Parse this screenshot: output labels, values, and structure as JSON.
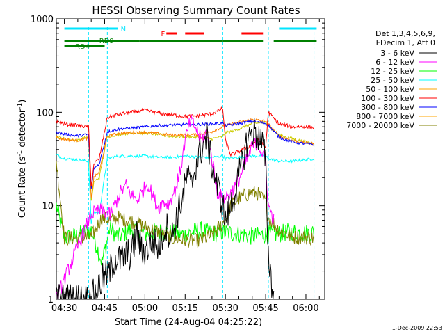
{
  "chart_data": {
    "type": "line",
    "title": "HESSI Observing Summary Count Rates",
    "xlabel": "Start Time (24-Aug-04 04:25:22)",
    "ylabel": "Count Rate (s⁻¹ detector⁻¹)",
    "ylabel_parts": {
      "main": "Count Rate (s",
      "sup1": "-1",
      "mid": " detector",
      "sup2": "-1",
      "end": ")"
    },
    "y_scale": "log",
    "ylim": [
      1,
      1000
    ],
    "xlim_minutes": [
      -3,
      97
    ],
    "x_tick_labels": [
      "04:30",
      "04:45",
      "05:00",
      "05:15",
      "05:30",
      "05:45",
      "06:00"
    ],
    "x_tick_minutes": [
      0,
      15,
      30,
      45,
      60,
      75,
      90
    ],
    "y_tick_labels": [
      "1",
      "10",
      "100",
      "1000"
    ],
    "y_tick_values": [
      1,
      10,
      100,
      1000
    ],
    "grid": false,
    "legend_position": "right",
    "legend_header": [
      "Det 1,3,4,5,6,9,",
      "FDecim 1, Att 0"
    ],
    "timestamp": "1-Dec-2009 22:53",
    "flags": [
      {
        "label": "N",
        "color": "#00e5ff",
        "segments": [
          [
            0,
            20
          ],
          [
            80,
            94
          ]
        ]
      },
      {
        "label": "F",
        "color": "#ff0000",
        "segments": [
          [
            38,
            42
          ],
          [
            45,
            52
          ],
          [
            66,
            74
          ]
        ]
      },
      {
        "label": "RD9",
        "color": "#008000",
        "segments": [
          [
            0,
            28
          ],
          [
            28,
            59
          ],
          [
            59,
            74
          ],
          [
            78,
            94
          ]
        ]
      },
      {
        "label": "RD4",
        "color": "#008000",
        "segments": [
          [
            0,
            15
          ]
        ]
      }
    ],
    "saa_times": [
      9,
      16,
      59,
      76,
      93
    ],
    "series": [
      {
        "name": "3 - 6 keV",
        "color": "#000000",
        "x": [
          -3,
          10,
          14,
          17,
          19,
          21,
          23,
          25,
          27,
          29,
          31,
          33,
          35,
          37,
          38,
          40,
          42,
          44,
          46,
          47,
          49,
          51,
          53,
          55,
          57,
          59,
          60,
          62,
          64,
          66,
          68,
          70,
          72,
          74,
          75,
          76,
          78
        ],
        "y": [
          1.0,
          1.0,
          1.6,
          2.0,
          2.8,
          2.6,
          3.0,
          3.0,
          5.0,
          3.2,
          3.5,
          4.2,
          3.5,
          5.2,
          6.0,
          4.5,
          8,
          12,
          22,
          15,
          28,
          40,
          55,
          28,
          16,
          10,
          7,
          10,
          15,
          27,
          48,
          63,
          58,
          44,
          28,
          3.0,
          1.0
        ]
      },
      {
        "name": "6 - 12 keV",
        "color": "#ff00ff",
        "x": [
          -3,
          10,
          14,
          17,
          19,
          21,
          23,
          25,
          27,
          29,
          31,
          33,
          35,
          37,
          39,
          41,
          43,
          45,
          47,
          49,
          51,
          53,
          55,
          57,
          59,
          62,
          65,
          68,
          70,
          72,
          74,
          75,
          76,
          78
        ],
        "y": [
          1.0,
          8.2,
          9.0,
          8.0,
          10.5,
          14,
          16.5,
          13,
          11.5,
          14,
          17.5,
          12.5,
          9.5,
          11,
          10.5,
          14,
          22,
          50,
          82,
          68,
          50,
          62,
          32,
          14,
          12,
          13.5,
          19,
          31,
          43,
          48,
          35,
          28,
          10,
          7
        ]
      },
      {
        "name": "12 - 25 keV",
        "color": "#00ff00",
        "x": [
          -3,
          0,
          5,
          10,
          14,
          17,
          20,
          25,
          30,
          35,
          40,
          45,
          50,
          55,
          60,
          65,
          70,
          75,
          80,
          85,
          90,
          93
        ],
        "y": [
          10,
          4.5,
          4.8,
          5.5,
          2.5,
          5.8,
          4.6,
          5.6,
          5.0,
          5.3,
          5.1,
          4.9,
          5.5,
          5.0,
          5.2,
          5.0,
          4.7,
          4.9,
          5.0,
          5.3,
          5.1,
          5.2
        ]
      },
      {
        "name": "25 - 50 keV",
        "color": "#00ffff",
        "x": [
          -3,
          0,
          5,
          9,
          10,
          11,
          13,
          16,
          20,
          25,
          30,
          35,
          40,
          45,
          50,
          55,
          59,
          60,
          65,
          70,
          75,
          76,
          80,
          85,
          90,
          93
        ],
        "y": [
          35,
          32,
          31,
          30,
          6.5,
          8.5,
          8.5,
          32,
          34,
          34,
          34,
          33,
          33,
          34,
          33,
          33,
          34,
          32,
          33,
          34,
          34,
          32,
          30,
          30,
          31,
          32
        ]
      },
      {
        "name": "50 - 100 keV",
        "color": "#ffa500",
        "x": [
          -3,
          0,
          5,
          9,
          10,
          11,
          13,
          16,
          20,
          25,
          30,
          35,
          40,
          45,
          50,
          55,
          59,
          60,
          65,
          70,
          75,
          76,
          80,
          85,
          90,
          93
        ],
        "y": [
          55,
          52,
          50,
          55,
          11,
          18,
          20,
          55,
          58,
          60,
          60,
          58,
          55,
          55,
          54,
          52,
          55,
          60,
          66,
          76,
          78,
          72,
          57,
          52,
          48,
          47
        ]
      },
      {
        "name": "100 - 300 keV",
        "color": "#ff0000",
        "x": [
          -3,
          0,
          5,
          9,
          10,
          11,
          13,
          16,
          20,
          25,
          30,
          35,
          40,
          45,
          50,
          55,
          59,
          60,
          62,
          65,
          70,
          72,
          75,
          76,
          80,
          85,
          90,
          93
        ],
        "y": [
          80,
          75,
          72,
          70,
          16,
          28,
          32,
          88,
          95,
          100,
          105,
          98,
          94,
          90,
          92,
          96,
          110,
          50,
          35,
          38,
          45,
          52,
          42,
          100,
          75,
          70,
          70,
          68
        ]
      },
      {
        "name": "300 - 800 keV",
        "color": "#0000ff",
        "x": [
          -3,
          0,
          5,
          9,
          10,
          11,
          13,
          16,
          20,
          25,
          30,
          35,
          40,
          45,
          50,
          55,
          59,
          60,
          65,
          70,
          75,
          76,
          80,
          85,
          90,
          93
        ],
        "y": [
          62,
          58,
          56,
          58,
          15,
          25,
          28,
          62,
          66,
          68,
          70,
          72,
          73,
          74,
          74,
          75,
          76,
          72,
          76,
          80,
          76,
          73,
          54,
          48,
          46,
          45
        ]
      },
      {
        "name": "800 - 7000 keV",
        "color": "#ffa500",
        "x": [
          -3,
          0,
          5,
          9,
          10,
          11,
          13,
          16,
          20,
          25,
          30,
          35,
          40,
          45,
          50,
          55,
          59,
          60,
          65,
          70,
          75,
          76,
          80,
          85,
          90,
          93
        ],
        "y": [
          54,
          51,
          50,
          53,
          12,
          20,
          23,
          56,
          59,
          61,
          61,
          59,
          57,
          57,
          58,
          62,
          70,
          72,
          78,
          84,
          80,
          75,
          55,
          50,
          47,
          46
        ]
      },
      {
        "name": "7000 - 20000 keV",
        "color": "#808000",
        "x": [
          -3,
          0,
          5,
          10,
          14,
          17,
          20,
          25,
          30,
          35,
          40,
          45,
          50,
          55,
          60,
          62,
          65,
          70,
          72,
          75,
          76,
          80,
          85,
          90,
          93
        ],
        "y": [
          30,
          4.5,
          4.5,
          4.6,
          7.5,
          7.0,
          7.5,
          6.8,
          6.0,
          5.2,
          4.5,
          4.3,
          4.2,
          4.8,
          7,
          10,
          12,
          14,
          13.5,
          11,
          7.5,
          5.5,
          4.6,
          4.6,
          4.5
        ]
      }
    ],
    "legend_line_colors": [
      "#000000",
      "#ff00ff",
      "#00ff00",
      "#00ffff",
      "#ffa500",
      "#ff0000",
      "#0000ff",
      "#ffa500",
      "#808000"
    ],
    "series_draw_colors": [
      "#000000",
      "#ff00ff",
      "#00ff00",
      "#00ffff",
      "#cccc00",
      "#ff0000",
      "#0000ff",
      "#ff8000",
      "#808000"
    ]
  }
}
